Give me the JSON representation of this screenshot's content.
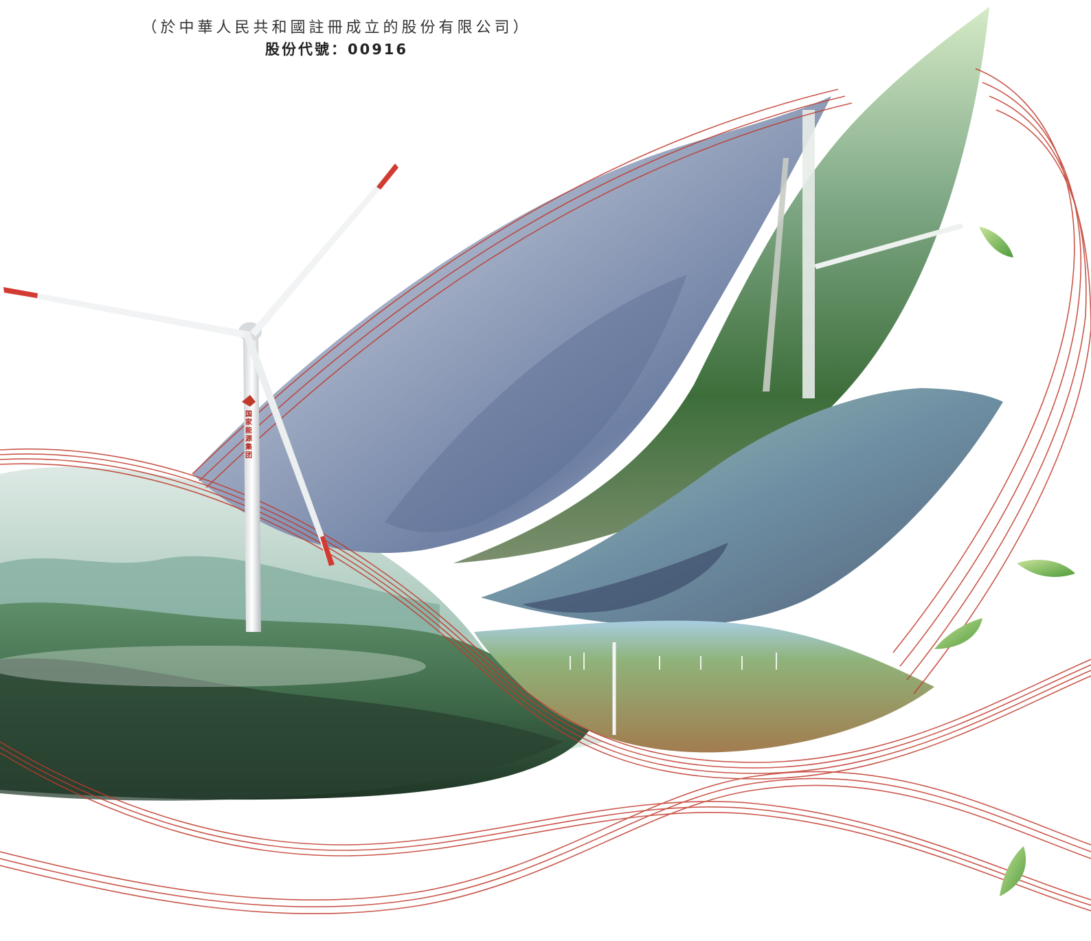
{
  "header": {
    "registration": "（於中華人民共和國註冊成立的股份有限公司）",
    "stock_code": "股份代號：00916"
  },
  "tower_logo_text": "国家能源集团",
  "colors": {
    "accent_red": "#c0392b",
    "leaf_green": "#8bc34a",
    "mist_green": "#5f8f73",
    "panel_blue": "#7f93b8",
    "sky_green": "#cfe6c2"
  },
  "icons": [
    "wind-turbine-icon",
    "leaf-icon",
    "solar-panel-field",
    "mountain-landscape"
  ]
}
